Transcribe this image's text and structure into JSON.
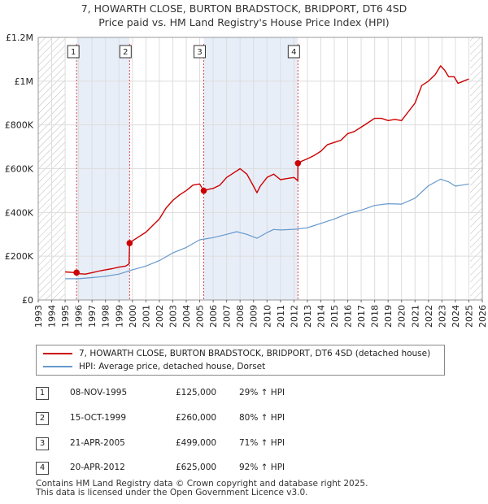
{
  "title_line1": "7, HOWARTH CLOSE, BURTON BRADSTOCK, BRIDPORT, DT6 4SD",
  "title_line2": "Price paid vs. HM Land Registry's House Price Index (HPI)",
  "legend": {
    "property_label": "7, HOWARTH CLOSE, BURTON BRADSTOCK, BRIDPORT, DT6 4SD (detached house)",
    "hpi_label": "HPI: Average price, detached house, Dorset"
  },
  "colors": {
    "property": "#cc0000",
    "hpi": "#6699cc",
    "shade": "#e8eef8",
    "hatch": "#bbbbbb",
    "marker": "#cc0000"
  },
  "transactions": [
    {
      "num": "1",
      "date": "08-NOV-1995",
      "price": "£125,000",
      "hpi": "29% ↑ HPI"
    },
    {
      "num": "2",
      "date": "15-OCT-1999",
      "price": "£260,000",
      "hpi": "80% ↑ HPI"
    },
    {
      "num": "3",
      "date": "21-APR-2005",
      "price": "£499,000",
      "hpi": "71% ↑ HPI"
    },
    {
      "num": "4",
      "date": "20-APR-2012",
      "price": "£625,000",
      "hpi": "92% ↑ HPI"
    }
  ],
  "footer_line1": "Contains HM Land Registry data © Crown copyright and database right 2025.",
  "footer_line2": "This data is licensed under the Open Government Licence v3.0.",
  "chart_data": {
    "type": "line",
    "xlim": [
      1993,
      2026
    ],
    "ylim": [
      0,
      1200000
    ],
    "y_ticks": [
      0,
      200000,
      400000,
      600000,
      800000,
      1000000,
      1200000
    ],
    "y_tick_labels": [
      "£0",
      "£200K",
      "£400K",
      "£600K",
      "£800K",
      "£1M",
      "£1.2M"
    ],
    "x_ticks": [
      1993,
      1994,
      1995,
      1996,
      1997,
      1998,
      1999,
      2000,
      2001,
      2002,
      2003,
      2004,
      2005,
      2006,
      2007,
      2008,
      2009,
      2010,
      2011,
      2012,
      2013,
      2014,
      2015,
      2016,
      2017,
      2018,
      2019,
      2020,
      2021,
      2022,
      2023,
      2024,
      2025,
      2026
    ],
    "x_tick_labels": [
      "1993",
      "1994",
      "1995",
      "1996",
      "1997",
      "1998",
      "1999",
      "2000",
      "2001",
      "2002",
      "2003",
      "2004",
      "2005",
      "2006",
      "2007",
      "2008",
      "2009",
      "2010",
      "2011",
      "2012",
      "2013",
      "2014",
      "2015",
      "2016",
      "2017",
      "2018",
      "2019",
      "2020",
      "2021",
      "2022",
      "2023",
      "2024",
      "2025",
      "2026"
    ],
    "hatched_before": 1995.0,
    "hatched_after": 2025.1,
    "shaded_bands": [
      [
        1995.85,
        1999.79
      ],
      [
        2005.3,
        2012.3
      ]
    ],
    "sales": [
      {
        "label": "1",
        "x": 1995.85,
        "y": 125000
      },
      {
        "label": "2",
        "x": 1999.79,
        "y": 260000
      },
      {
        "label": "3",
        "x": 2005.3,
        "y": 499000
      },
      {
        "label": "4",
        "x": 2012.3,
        "y": 625000
      }
    ],
    "series": [
      {
        "name": "7, HOWARTH CLOSE, BURTON BRADSTOCK, BRIDPORT, DT6 4SD (detached house)",
        "x": [
          1995.0,
          1995.85,
          1996.0,
          1996.5,
          1997.0,
          1997.5,
          1998.0,
          1998.5,
          1999.0,
          1999.5,
          1999.75,
          1999.79,
          2000.0,
          2000.5,
          2001.0,
          2001.5,
          2002.0,
          2002.5,
          2003.0,
          2003.5,
          2004.0,
          2004.5,
          2005.0,
          2005.3,
          2005.6,
          2006.0,
          2006.5,
          2007.0,
          2007.5,
          2008.0,
          2008.5,
          2009.0,
          2009.25,
          2009.5,
          2010.0,
          2010.5,
          2011.0,
          2011.5,
          2012.0,
          2012.29,
          2012.3,
          2012.6,
          2013.0,
          2013.5,
          2014.0,
          2014.5,
          2015.0,
          2015.5,
          2016.0,
          2016.5,
          2017.0,
          2017.5,
          2018.0,
          2018.5,
          2019.0,
          2019.5,
          2020.0,
          2020.5,
          2021.0,
          2021.5,
          2022.0,
          2022.5,
          2022.9,
          2023.2,
          2023.5,
          2023.9,
          2024.2,
          2024.6,
          2025.0
        ],
        "y": [
          128000,
          125000,
          120000,
          118000,
          125000,
          132000,
          138000,
          143000,
          150000,
          155000,
          165000,
          260000,
          270000,
          290000,
          310000,
          340000,
          370000,
          420000,
          455000,
          480000,
          500000,
          525000,
          530000,
          499000,
          505000,
          510000,
          525000,
          560000,
          580000,
          600000,
          575000,
          520000,
          490000,
          520000,
          560000,
          575000,
          550000,
          555000,
          560000,
          545000,
          625000,
          635000,
          645000,
          660000,
          680000,
          710000,
          720000,
          730000,
          760000,
          770000,
          790000,
          810000,
          830000,
          830000,
          820000,
          825000,
          820000,
          860000,
          900000,
          980000,
          1000000,
          1030000,
          1070000,
          1050000,
          1020000,
          1020000,
          990000,
          1000000,
          1010000
        ]
      },
      {
        "name": "HPI: Average price, detached house, Dorset",
        "x": [
          1995.0,
          1996.0,
          1997.0,
          1998.0,
          1999.0,
          2000.0,
          2001.0,
          2002.0,
          2003.0,
          2004.0,
          2005.0,
          2006.0,
          2007.0,
          2007.75,
          2008.5,
          2009.25,
          2010.0,
          2010.5,
          2011.0,
          2012.0,
          2013.0,
          2014.0,
          2015.0,
          2016.0,
          2017.0,
          2018.0,
          2019.0,
          2020.0,
          2021.0,
          2022.0,
          2022.9,
          2023.5,
          2024.0,
          2024.5,
          2025.0
        ],
        "y": [
          97000,
          97000,
          102000,
          108000,
          118000,
          138000,
          155000,
          180000,
          215000,
          240000,
          275000,
          285000,
          300000,
          312000,
          300000,
          282000,
          308000,
          322000,
          320000,
          323000,
          330000,
          350000,
          370000,
          395000,
          410000,
          432000,
          440000,
          438000,
          465000,
          522000,
          552000,
          540000,
          520000,
          525000,
          530000
        ]
      }
    ]
  }
}
